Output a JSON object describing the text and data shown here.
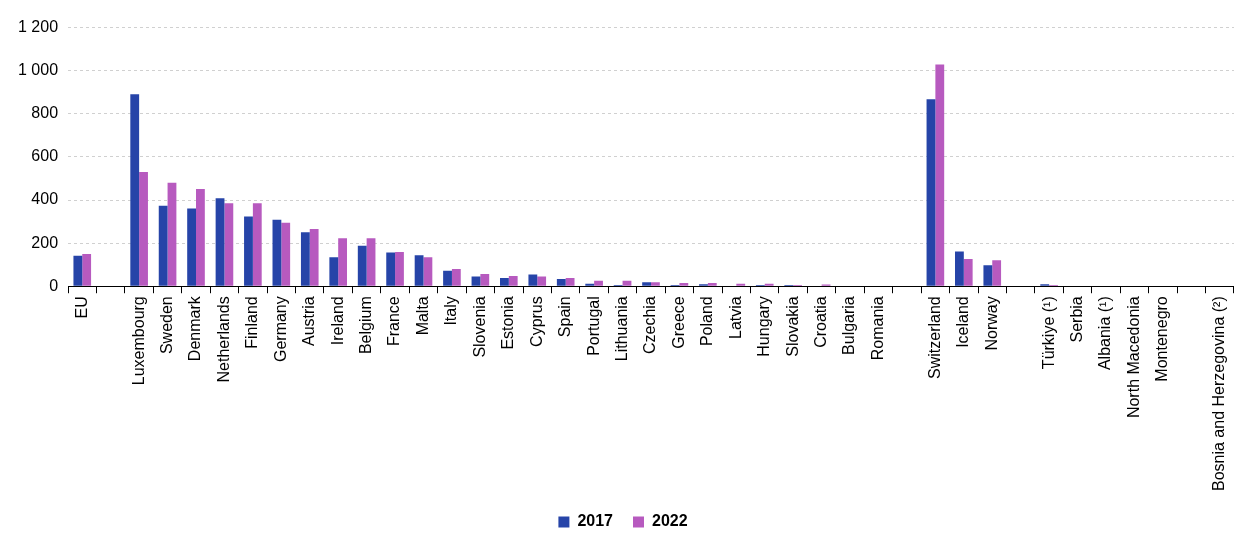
{
  "chart_data": {
    "type": "bar",
    "categories": [
      "EU",
      null,
      "Luxembourg",
      "Sweden",
      "Denmark",
      "Netherlands",
      "Finland",
      "Germany",
      "Austria",
      "Ireland",
      "Belgium",
      "France",
      "Malta",
      "Italy",
      "Slovenia",
      "Estonia",
      "Cyprus",
      "Spain",
      "Portugal",
      "Lithuania",
      "Czechia",
      "Greece",
      "Poland",
      "Latvia",
      "Hungary",
      "Slovakia",
      "Croatia",
      "Bulgaria",
      "Romania",
      null,
      "Switzerland",
      "Iceland",
      "Norway",
      null,
      "Türkiye (¹)",
      "Serbia",
      "Albania (¹)",
      "North Macedonia",
      "Montenegro",
      null,
      "Bosnia and Herzegovina (²)"
    ],
    "series": [
      {
        "name": "2017",
        "color": "#2644a8",
        "values": [
          141,
          null,
          891,
          373,
          361,
          408,
          323,
          308,
          250,
          135,
          188,
          156,
          144,
          72,
          45,
          38,
          54,
          34,
          12,
          6,
          18,
          6,
          9,
          null,
          6,
          6,
          null,
          null,
          0,
          null,
          868,
          161,
          97,
          null,
          9,
          null,
          null,
          null,
          null,
          null,
          null
        ]
      },
      {
        "name": "2022",
        "color": "#b75abf",
        "values": [
          150,
          null,
          530,
          480,
          451,
          385,
          385,
          294,
          265,
          223,
          223,
          159,
          135,
          80,
          57,
          48,
          45,
          38,
          26,
          25,
          18,
          15,
          15,
          11,
          11,
          6,
          8,
          null,
          0,
          null,
          1029,
          126,
          120,
          null,
          6,
          null,
          null,
          null,
          null,
          null,
          null
        ]
      }
    ],
    "ylim": [
      0,
      1200
    ],
    "yticks": [
      0,
      200,
      400,
      600,
      800,
      {
        "value": 1000,
        "label": "1 000"
      },
      {
        "value": 1200,
        "label": "1 200"
      }
    ],
    "grid": "y",
    "legend": "bottom"
  }
}
